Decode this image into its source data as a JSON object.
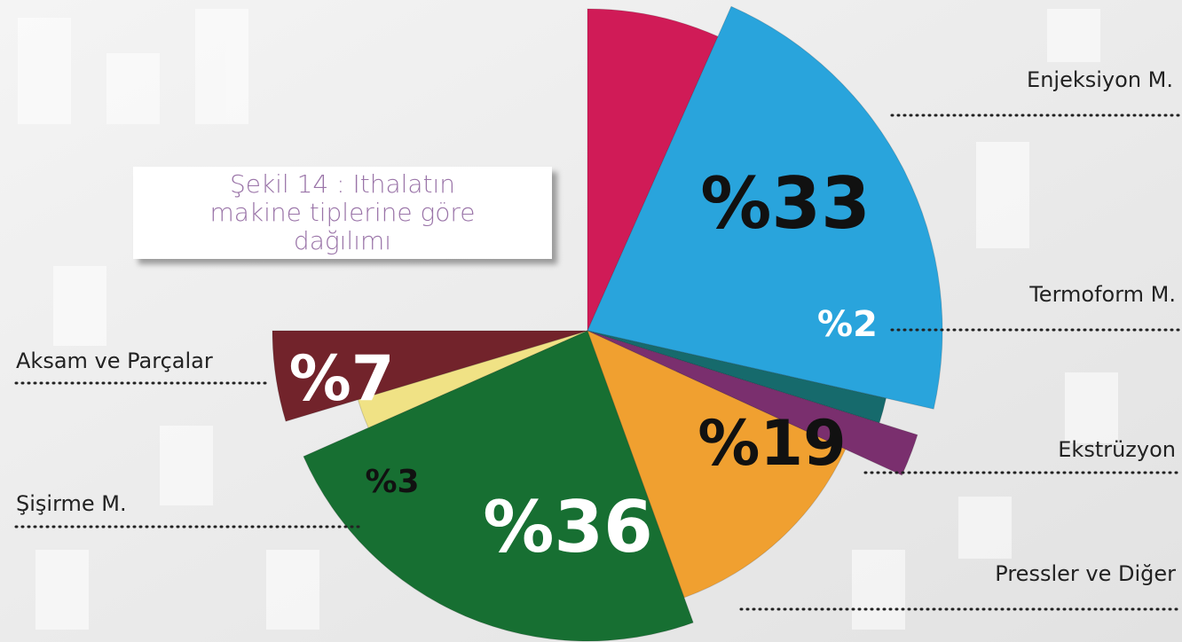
{
  "chart_data": {
    "type": "pie",
    "title": "Şekil 14 : Ithalatın makine tiplerine göre dağılımı",
    "categories": [
      null,
      "Enjeksiyon M.",
      "Termoform M.",
      null,
      "Ekstrüzyon",
      "Pressler ve Diğer",
      "Şişirme M.",
      "Aksam ve Parçalar"
    ],
    "values": [
      10,
      33,
      2,
      3,
      19,
      36,
      3,
      7
    ],
    "value_labels": [
      null,
      "%33",
      "%2",
      null,
      "%19",
      "%36",
      "%3",
      "%7"
    ],
    "colors": [
      "#d01b57",
      "#29a4dc",
      "#166a6c",
      "#7a2f6e",
      "#f0a030",
      "#176f32",
      "#f0e285",
      "#72232b"
    ]
  }
}
